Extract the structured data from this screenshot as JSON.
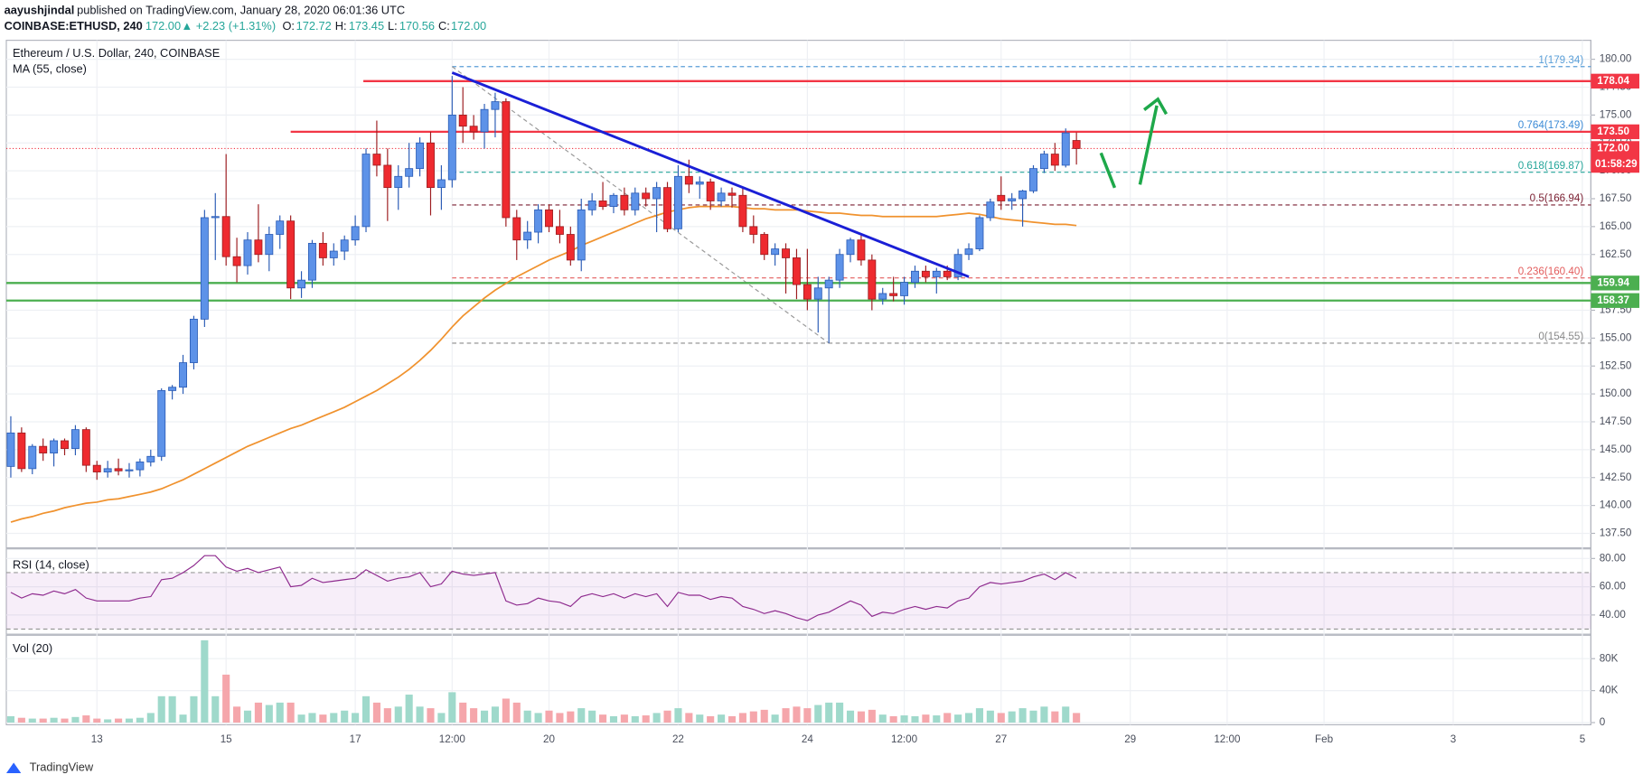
{
  "header": {
    "author": "aayushjindal",
    "published": "published on TradingView.com, January 28, 2020 06:01:36 UTC",
    "symbol": "COINBASE:ETHUSD, 240",
    "price": "172.00",
    "change": "▲ +2.23 (+1.31%)",
    "ohlc": [
      [
        "O:",
        "172.72"
      ],
      [
        "H:",
        "173.45"
      ],
      [
        "L:",
        "170.56"
      ],
      [
        "C:",
        "172.00"
      ]
    ]
  },
  "chart_data": {
    "type": "candlestick",
    "title": "Ethereum / U.S. Dollar, 240, COINBASE",
    "candles": {
      "x": [
        "2020-01-11T16:00",
        "2020-01-11T20:00",
        "2020-01-12T00:00",
        "2020-01-12T04:00",
        "2020-01-12T08:00",
        "2020-01-12T12:00",
        "2020-01-12T16:00",
        "2020-01-12T20:00",
        "2020-01-13T00:00",
        "2020-01-13T04:00",
        "2020-01-13T08:00",
        "2020-01-13T12:00",
        "2020-01-13T16:00",
        "2020-01-13T20:00",
        "2020-01-14T00:00",
        "2020-01-14T04:00",
        "2020-01-14T08:00",
        "2020-01-14T12:00",
        "2020-01-14T16:00",
        "2020-01-14T20:00",
        "2020-01-15T00:00",
        "2020-01-15T04:00",
        "2020-01-15T08:00",
        "2020-01-15T12:00",
        "2020-01-15T16:00",
        "2020-01-15T20:00",
        "2020-01-16T00:00",
        "2020-01-16T04:00",
        "2020-01-16T08:00",
        "2020-01-16T12:00",
        "2020-01-16T16:00",
        "2020-01-16T20:00",
        "2020-01-17T00:00",
        "2020-01-17T04:00",
        "2020-01-17T08:00",
        "2020-01-17T12:00",
        "2020-01-17T16:00",
        "2020-01-17T20:00",
        "2020-01-18T00:00",
        "2020-01-18T04:00",
        "2020-01-18T08:00",
        "2020-01-18T12:00",
        "2020-01-18T16:00",
        "2020-01-18T20:00",
        "2020-01-19T00:00",
        "2020-01-19T04:00",
        "2020-01-19T08:00",
        "2020-01-19T12:00",
        "2020-01-19T16:00",
        "2020-01-19T20:00",
        "2020-01-20T00:00",
        "2020-01-20T04:00",
        "2020-01-20T08:00",
        "2020-01-20T12:00",
        "2020-01-20T16:00",
        "2020-01-20T20:00",
        "2020-01-21T00:00",
        "2020-01-21T04:00",
        "2020-01-21T08:00",
        "2020-01-21T12:00",
        "2020-01-21T16:00",
        "2020-01-21T20:00",
        "2020-01-22T00:00",
        "2020-01-22T04:00",
        "2020-01-22T08:00",
        "2020-01-22T12:00",
        "2020-01-22T16:00",
        "2020-01-22T20:00",
        "2020-01-23T00:00",
        "2020-01-23T04:00",
        "2020-01-23T08:00",
        "2020-01-23T12:00",
        "2020-01-23T16:00",
        "2020-01-23T20:00",
        "2020-01-24T00:00",
        "2020-01-24T04:00",
        "2020-01-24T08:00",
        "2020-01-24T12:00",
        "2020-01-24T16:00",
        "2020-01-24T20:00",
        "2020-01-25T00:00",
        "2020-01-25T04:00",
        "2020-01-25T08:00",
        "2020-01-25T12:00",
        "2020-01-25T16:00",
        "2020-01-25T20:00",
        "2020-01-26T00:00",
        "2020-01-26T04:00",
        "2020-01-26T08:00",
        "2020-01-26T12:00",
        "2020-01-26T16:00",
        "2020-01-26T20:00",
        "2020-01-27T00:00",
        "2020-01-27T04:00",
        "2020-01-27T08:00",
        "2020-01-27T12:00",
        "2020-01-27T16:00",
        "2020-01-27T20:00",
        "2020-01-28T00:00",
        "2020-01-28T04:00"
      ],
      "open": [
        143.5,
        146.5,
        143.3,
        145.3,
        144.7,
        145.8,
        145.1,
        146.8,
        143.6,
        143,
        143.3,
        143.1,
        143.2,
        143.9,
        144.4,
        150.3,
        150.6,
        152.8,
        156.7,
        165.8,
        165.9,
        162.3,
        161.5,
        163.8,
        162.5,
        164.3,
        165.5,
        159.5,
        160.2,
        163.5,
        162.2,
        162.8,
        163.8,
        165,
        171.5,
        170.5,
        168.5,
        169.5,
        170.2,
        172.5,
        168.5,
        169.2,
        175,
        174,
        173.5,
        175.5,
        176.2,
        165.8,
        163.8,
        164.5,
        166.5,
        165,
        164.3,
        162,
        166.5,
        167.3,
        166.8,
        167.8,
        166.5,
        168,
        167.5,
        168.5,
        164.8,
        169.5,
        168.8,
        169,
        167.3,
        168,
        167.8,
        165,
        164.3,
        162.5,
        163,
        162.2,
        159.8,
        158.5,
        159.5,
        160.2,
        162.5,
        163.8,
        162,
        158.5,
        159,
        158.8,
        160,
        161,
        160.5,
        161,
        160.5,
        162.5,
        163,
        165.8,
        167.8,
        167.3,
        167.5,
        168.2,
        170.2,
        171.5,
        170.5,
        172.72
      ],
      "high": [
        148,
        147,
        145.5,
        146,
        146,
        146,
        147.2,
        147,
        144,
        144,
        144.2,
        143.8,
        144.2,
        145,
        150.5,
        150.8,
        153.5,
        157,
        166.5,
        168,
        171.5,
        164,
        164.5,
        167,
        165,
        166,
        166,
        161,
        163.8,
        164.5,
        163.5,
        164.2,
        166,
        172,
        174.5,
        172,
        170.5,
        172.5,
        173,
        173.5,
        170.5,
        178.5,
        177.5,
        175,
        176,
        177,
        176.5,
        166.5,
        165.5,
        167,
        167,
        166.5,
        165,
        167.5,
        168,
        169,
        168,
        168.5,
        168.5,
        168.5,
        169,
        169,
        170.5,
        171,
        169.5,
        169.3,
        168.5,
        168.5,
        168.5,
        166,
        164.5,
        163.5,
        163.5,
        163,
        163,
        160.5,
        160.5,
        163,
        164,
        164.2,
        162.5,
        159.5,
        160.5,
        160.5,
        161.5,
        161.5,
        161.3,
        161.5,
        163,
        163.5,
        166,
        167.5,
        169.5,
        168,
        168.3,
        170.5,
        171.8,
        172.5,
        173.8,
        173.45
      ],
      "low": [
        142.5,
        143,
        142.8,
        144,
        143.5,
        144.5,
        144.5,
        143,
        142.3,
        142.5,
        142.7,
        142.5,
        142.6,
        143.5,
        144,
        149.5,
        150,
        152.2,
        156,
        162,
        161.5,
        160,
        160.7,
        161.8,
        161,
        163,
        158.5,
        158.6,
        159.5,
        161.5,
        161.5,
        162,
        163.3,
        164.5,
        169.5,
        165.5,
        166.5,
        168.5,
        169.5,
        166,
        166.5,
        168.5,
        172.5,
        172.8,
        172,
        173,
        165,
        162,
        163,
        163.5,
        164.5,
        163.5,
        161.5,
        161,
        166,
        166.5,
        166.2,
        166,
        166,
        166.8,
        164.5,
        164.5,
        164.5,
        168,
        167.5,
        166.5,
        166.8,
        166.7,
        164.5,
        163.5,
        162,
        161.5,
        159,
        158.5,
        157.5,
        155.5,
        154.55,
        159.5,
        161.8,
        161.5,
        157.5,
        158,
        158.3,
        158,
        159.5,
        160,
        159,
        160.2,
        160.2,
        162,
        162.8,
        165.5,
        166.5,
        166.5,
        165,
        168,
        169.8,
        170,
        170.3,
        170.56
      ],
      "close": [
        146.5,
        143.3,
        145.3,
        144.7,
        145.8,
        145.1,
        146.8,
        143.6,
        143,
        143.3,
        143.1,
        143.2,
        143.9,
        144.4,
        150.3,
        150.6,
        152.8,
        156.7,
        165.8,
        165.9,
        162.3,
        161.5,
        163.8,
        162.5,
        164.3,
        165.5,
        159.5,
        160.2,
        163.5,
        162.2,
        162.8,
        163.8,
        165,
        171.5,
        170.5,
        168.5,
        169.5,
        170.2,
        172.5,
        168.5,
        169.2,
        175,
        174,
        173.5,
        175.5,
        176.2,
        165.8,
        163.8,
        164.5,
        166.5,
        165,
        164.3,
        162,
        166.5,
        167.3,
        166.8,
        167.8,
        166.5,
        168,
        167.5,
        168.5,
        164.8,
        169.5,
        168.8,
        169,
        167.3,
        168,
        167.8,
        165,
        164.3,
        162.5,
        163,
        162.2,
        159.8,
        158.5,
        159.5,
        160.2,
        162.5,
        163.8,
        162,
        158.5,
        159,
        158.8,
        160,
        161,
        160.5,
        161,
        160.5,
        162.5,
        163,
        165.8,
        167.2,
        167.3,
        167.5,
        168.2,
        170.2,
        171.5,
        170.5,
        173.4,
        172
      ]
    },
    "up_color": "#5d92e8",
    "up_border": "#2a5bb5",
    "down_color": "#ee2a2f",
    "down_border": "#9c1c1f",
    "ma": {
      "name": "MA (55, close)",
      "color": "#f0922e",
      "values": [
        138.5,
        138.8,
        139.0,
        139.3,
        139.5,
        139.8,
        140.0,
        140.2,
        140.3,
        140.5,
        140.6,
        140.8,
        141.0,
        141.2,
        141.5,
        141.9,
        142.3,
        142.8,
        143.3,
        143.8,
        144.3,
        144.8,
        145.3,
        145.7,
        146.1,
        146.5,
        146.9,
        147.2,
        147.6,
        148.0,
        148.4,
        148.8,
        149.3,
        149.8,
        150.3,
        150.9,
        151.5,
        152.2,
        153.0,
        153.9,
        154.9,
        156.0,
        157.0,
        157.8,
        158.6,
        159.3,
        159.9,
        160.5,
        161.0,
        161.5,
        162.0,
        162.4,
        162.8,
        163.3,
        163.7,
        164.1,
        164.5,
        164.9,
        165.3,
        165.7,
        166.0,
        166.3,
        166.5,
        166.7,
        166.8,
        166.8,
        166.8,
        166.8,
        166.7,
        166.6,
        166.6,
        166.5,
        166.5,
        166.5,
        166.4,
        166.3,
        166.2,
        166.2,
        166.1,
        166.0,
        166.0,
        165.9,
        165.9,
        165.9,
        165.9,
        165.9,
        165.9,
        166.0,
        166.1,
        166.2,
        166.1,
        165.9,
        165.7,
        165.6,
        165.5,
        165.4,
        165.3,
        165.2,
        165.2,
        165.1
      ]
    },
    "xlim": [
      "2020-01-11T14:20",
      "2020-02-05T03:10"
    ],
    "xticks": [
      {
        "value": "2020-01-13T00:00",
        "label": "13"
      },
      {
        "value": "2020-01-15T00:00",
        "label": "15"
      },
      {
        "value": "2020-01-17T00:00",
        "label": "17"
      },
      {
        "value": "2020-01-18T12:00",
        "label": "12:00"
      },
      {
        "value": "2020-01-20T00:00",
        "label": "20"
      },
      {
        "value": "2020-01-22T00:00",
        "label": "22"
      },
      {
        "value": "2020-01-24T00:00",
        "label": "24"
      },
      {
        "value": "2020-01-25T12:00",
        "label": "12:00"
      },
      {
        "value": "2020-01-27T00:00",
        "label": "27"
      },
      {
        "value": "2020-01-29T00:00",
        "label": "29"
      },
      {
        "value": "2020-01-30T12:00",
        "label": "12:00"
      },
      {
        "value": "2020-02-01T00:00",
        "label": "Feb"
      },
      {
        "value": "2020-02-03T00:00",
        "label": "3"
      },
      {
        "value": "2020-02-05T00:00",
        "label": "5"
      }
    ],
    "ylim": [
      136.2,
      181.7
    ],
    "yticks": [
      {
        "value": 137.5,
        "label": "137.50"
      },
      {
        "value": 140,
        "label": "140.00"
      },
      {
        "value": 142.5,
        "label": "142.50"
      },
      {
        "value": 145,
        "label": "145.00"
      },
      {
        "value": 147.5,
        "label": "147.50"
      },
      {
        "value": 150,
        "label": "150.00"
      },
      {
        "value": 152.5,
        "label": "152.50"
      },
      {
        "value": 155,
        "label": "155.00"
      },
      {
        "value": 157.5,
        "label": "157.50"
      },
      {
        "value": 160,
        "label": "160.00"
      },
      {
        "value": 162.5,
        "label": "162.50"
      },
      {
        "value": 165,
        "label": "165.00"
      },
      {
        "value": 167.5,
        "label": "167.50"
      },
      {
        "value": 170,
        "label": "170.00"
      },
      {
        "value": 172.5,
        "label": "172.50"
      },
      {
        "value": 175,
        "label": "175.00"
      },
      {
        "value": 177.5,
        "label": "177.50"
      },
      {
        "value": 180,
        "label": "180.00"
      }
    ],
    "grid": true,
    "hlines": [
      {
        "value": 178.04,
        "label": "178.04",
        "color": "#f23645",
        "from": "2020-01-17T03:00"
      },
      {
        "value": 173.5,
        "label": "173.50",
        "color": "#f23645",
        "from": "2020-01-16T00:00"
      },
      {
        "value": 159.94,
        "label": "159.94",
        "color": "#4caf50"
      },
      {
        "value": 158.37,
        "label": "158.37",
        "color": "#4caf50"
      }
    ],
    "last_price": {
      "value": 172,
      "label": "172.00",
      "countdown": "01:58:29",
      "color": "#f23645"
    },
    "fib": {
      "from": "2020-01-18T12:00",
      "to": "2020-01-24T08:00",
      "levels": [
        {
          "ratio": 1,
          "price": 179.34,
          "label": "1(179.34)",
          "color": "#5a9fd8"
        },
        {
          "ratio": 0.764,
          "price": 173.49,
          "label": "0.764(173.49)",
          "color": "#3b8ad6"
        },
        {
          "ratio": 0.618,
          "price": 169.87,
          "label": "0.618(169.87)",
          "color": "#26a69a"
        },
        {
          "ratio": 0.5,
          "price": 166.94,
          "label": "0.5(166.94)",
          "color": "#7a1e30"
        },
        {
          "ratio": 0.236,
          "price": 160.4,
          "label": "0.236(160.40)",
          "color": "#e35d5d"
        },
        {
          "ratio": 0,
          "price": 154.55,
          "label": "0(154.55)",
          "color": "#8a8a8a"
        }
      ]
    },
    "trendline": {
      "x": [
        "2020-01-18T12:00",
        "2020-01-26T12:00"
      ],
      "y": [
        178.8,
        160.5
      ],
      "color": "#1a1fd6"
    },
    "rsi": {
      "name": "RSI (14, close)",
      "color": "#8e2a8e",
      "values": [
        56,
        52,
        55,
        54,
        57,
        55,
        58,
        52,
        50,
        50,
        50,
        50,
        52,
        53,
        65,
        66,
        70,
        75,
        82,
        82,
        74,
        71,
        73,
        70,
        72,
        74,
        60,
        61,
        66,
        63,
        64,
        65,
        66,
        72,
        68,
        64,
        66,
        67,
        70,
        60,
        62,
        71,
        69,
        68,
        69,
        70,
        50,
        47,
        48,
        52,
        50,
        49,
        46,
        53,
        55,
        53,
        55,
        52,
        55,
        53,
        55,
        46,
        56,
        54,
        54,
        51,
        53,
        52,
        46,
        44,
        41,
        43,
        41,
        38,
        36,
        40,
        42,
        46,
        50,
        47,
        39,
        42,
        41,
        44,
        46,
        44,
        46,
        45,
        50,
        52,
        60,
        63,
        62,
        63,
        64,
        67,
        69,
        65,
        70,
        66
      ],
      "ylim": [
        26.4,
        86.8
      ],
      "yticks": [
        {
          "value": 40,
          "label": "40.00"
        },
        {
          "value": 60,
          "label": "60.00"
        },
        {
          "value": 80,
          "label": "80.00"
        }
      ],
      "band": [
        30,
        70
      ]
    },
    "volume": {
      "name": "Vol (20)",
      "up_color": "#9fd9cb",
      "down_color": "#f5a6ab",
      "values": [
        8000,
        6000,
        5000,
        5000,
        6000,
        5000,
        7000,
        9000,
        5000,
        4000,
        5000,
        5000,
        6000,
        12000,
        33000,
        33000,
        10000,
        33000,
        103000,
        33000,
        60000,
        20000,
        15000,
        25000,
        22000,
        25000,
        25000,
        10000,
        12000,
        10000,
        12000,
        15000,
        12000,
        33000,
        25000,
        18000,
        20000,
        35000,
        20000,
        18000,
        12000,
        38000,
        25000,
        18000,
        15000,
        20000,
        30000,
        25000,
        15000,
        12000,
        15000,
        12000,
        14000,
        18000,
        15000,
        10000,
        8000,
        10000,
        8000,
        9000,
        12000,
        15000,
        18000,
        12000,
        10000,
        8000,
        10000,
        8000,
        12000,
        14000,
        16000,
        10000,
        18000,
        20000,
        18000,
        22000,
        25000,
        25000,
        15000,
        14000,
        16000,
        10000,
        8000,
        9000,
        8000,
        10000,
        9000,
        12000,
        10000,
        12000,
        18000,
        15000,
        12000,
        14000,
        18000,
        15000,
        20000,
        14000,
        20000,
        12000
      ],
      "ylim": [
        -2700,
        109300
      ],
      "yticks": [
        0,
        {
          "value": 40000,
          "label": "40K"
        },
        {
          "value": 80000,
          "label": "80K"
        }
      ]
    }
  },
  "footer": {
    "brand": "TradingView"
  }
}
